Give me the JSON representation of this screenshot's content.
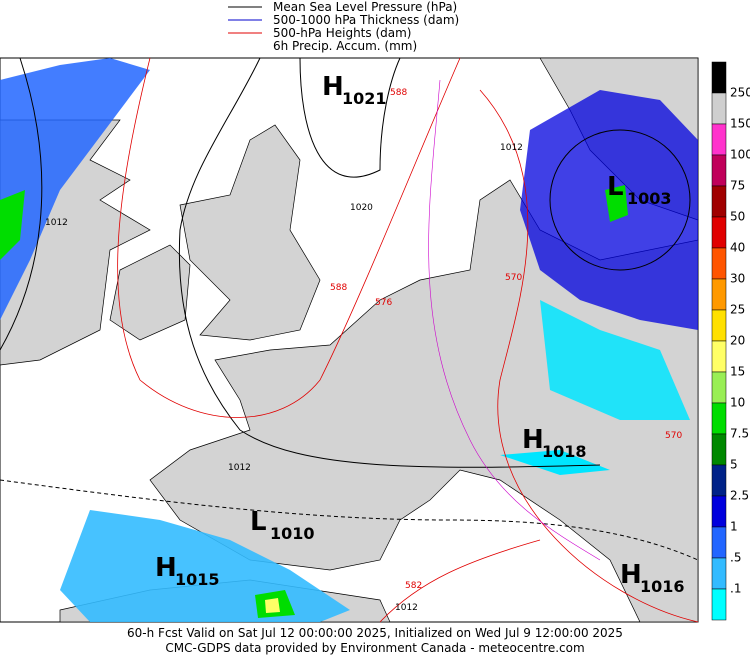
{
  "legend": [
    "Mean Sea Level Pressure (hPa)",
    "500-1000 hPa Thickness (dam)",
    "500-hPa Heights (dam)",
    "6h Precip. Accum. (mm)"
  ],
  "pressure_centers": [
    {
      "letter": "H",
      "value": "1021"
    },
    {
      "letter": "L",
      "value": "1003"
    },
    {
      "letter": "H",
      "value": "1018"
    },
    {
      "letter": "L",
      "value": "1010"
    },
    {
      "letter": "H",
      "value": "1015"
    },
    {
      "letter": "H",
      "value": "1016"
    }
  ],
  "contour_labels": [
    "1012",
    "1020",
    "1012",
    "1012",
    "1012",
    "588",
    "576",
    "570",
    "570",
    "582",
    "588"
  ],
  "colorbar": [
    {
      "label": "250",
      "color": "#000000"
    },
    {
      "label": "150",
      "color": "#cfcfcf"
    },
    {
      "label": "100",
      "color": "#ff33cc"
    },
    {
      "label": "75",
      "color": "#c0005a"
    },
    {
      "label": "50",
      "color": "#a00000"
    },
    {
      "label": "40",
      "color": "#e00000"
    },
    {
      "label": "30",
      "color": "#ff5500"
    },
    {
      "label": "25",
      "color": "#ff9900"
    },
    {
      "label": "20",
      "color": "#ffe000"
    },
    {
      "label": "15",
      "color": "#ffff66"
    },
    {
      "label": "10",
      "color": "#99ee55"
    },
    {
      "label": "7.5",
      "color": "#00dd00"
    },
    {
      "label": "5",
      "color": "#008800"
    },
    {
      "label": "2.5",
      "color": "#002288"
    },
    {
      "label": "1",
      "color": "#0000dd"
    },
    {
      "label": ".5",
      "color": "#2266ff"
    },
    {
      "label": ".1",
      "color": "#33bbff"
    },
    {
      "label": null,
      "color": "#00ffff"
    }
  ],
  "footer": [
    "60-h Fcst Valid on Sat Jul 12 00:00:00 2025, Initialized on Wed Jul  9 12:00:00 2025",
    "CMC-GDPS data provided by Environment Canada - meteocentre.com"
  ]
}
